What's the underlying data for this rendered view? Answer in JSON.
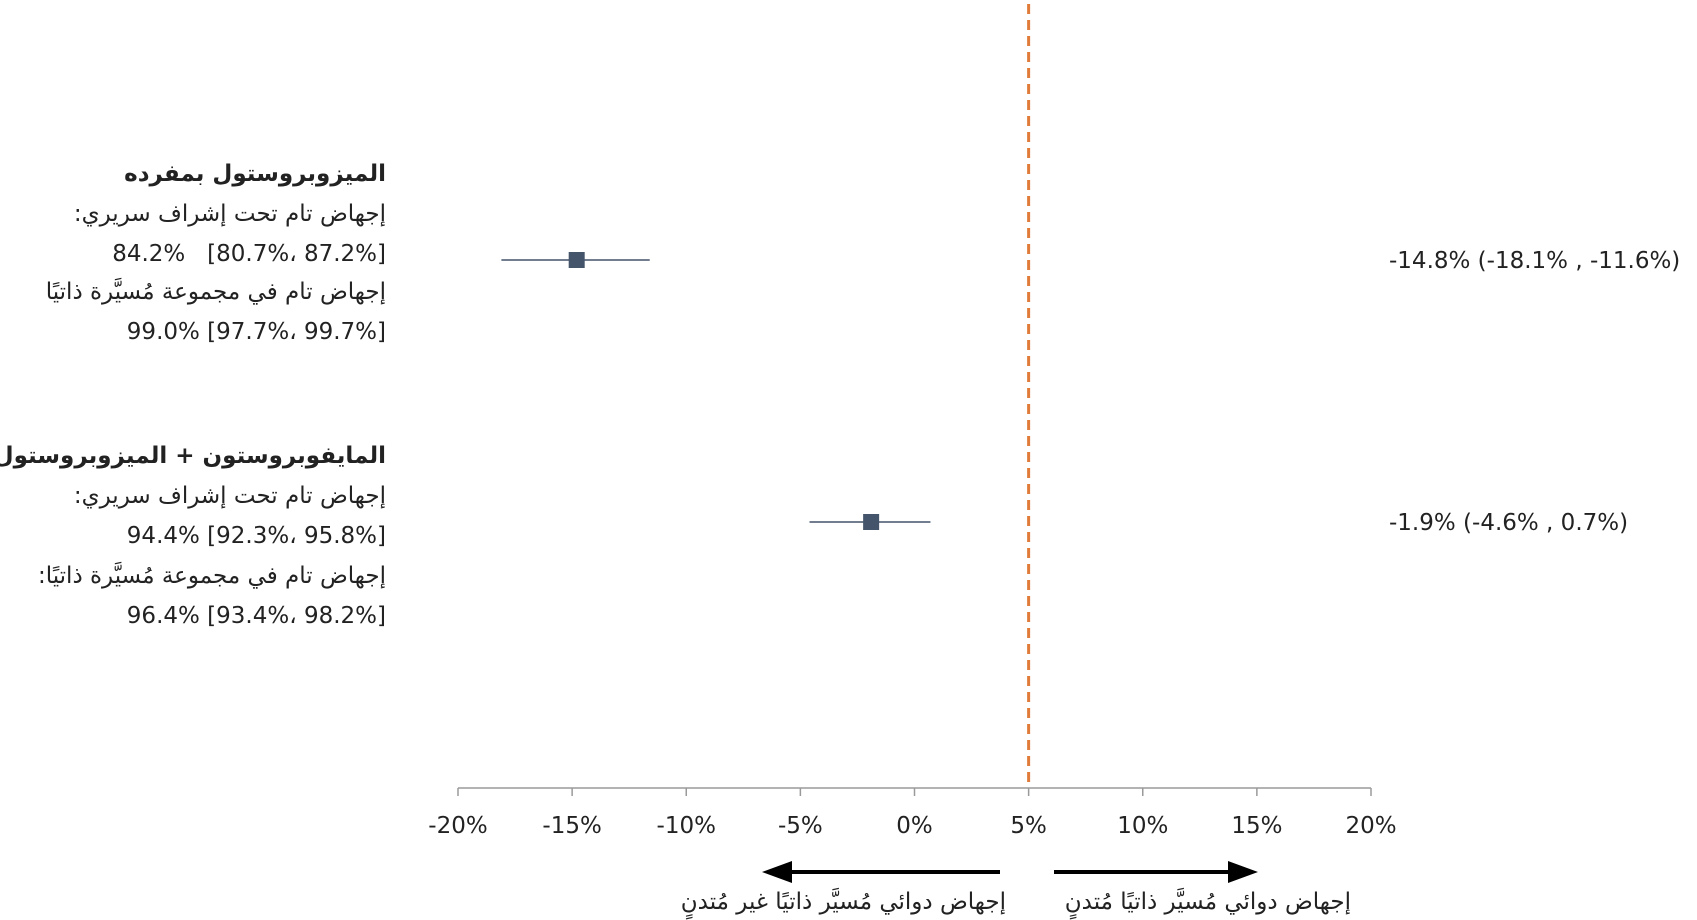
{
  "chart_data": {
    "type": "forest",
    "xlim": [
      -20,
      20
    ],
    "x_unit": "%",
    "x_ticks": [
      "-20%",
      "-15%",
      "-10%",
      "-5%",
      "0%",
      "5%",
      "10%",
      "15%",
      "20%"
    ],
    "x_tick_values": [
      -20,
      -15,
      -10,
      -5,
      0,
      5,
      10,
      15,
      20
    ],
    "reference_line": {
      "x": 5,
      "style": "dashed",
      "color": "#e07b39"
    },
    "marker_color": "#44546a",
    "line_color": "#44546a",
    "axis_color": "#9a9a9a",
    "rows": [
      {
        "heading": "الميزوبروستول بمفرده",
        "line1": "إجهاض تام تحت إشراف سريري:",
        "line2": "84.2%   [80.7%، 87.2%]",
        "line3": "إجهاض تام في مجموعة مُسيَّرة ذاتيًا",
        "line4": "99.0% [97.7%، 99.7%]",
        "estimate": -14.8,
        "ci_low": -18.1,
        "ci_high": -11.6,
        "ci_text": "-14.8% (-18.1% , -11.6%)"
      },
      {
        "heading": "المايفوبروستون + الميزوبروستول",
        "line1": "إجهاض تام تحت إشراف سريري:",
        "line2": "94.4% [92.3%، 95.8%]",
        "line3": "إجهاض تام في مجموعة مُسيَّرة ذاتيًا:",
        "line4": "96.4% [93.4%، 98.2%]",
        "estimate": -1.9,
        "ci_low": -4.6,
        "ci_high": 0.7,
        "ci_text": "-1.9% (-4.6% , 0.7%)"
      }
    ],
    "arrows": {
      "left": "إجهاض دوائي مُسيَّر ذاتيًا غير مُتدنٍ",
      "right": "إجهاض دوائي مُسيَّر ذاتيًا مُتدنٍ"
    }
  }
}
